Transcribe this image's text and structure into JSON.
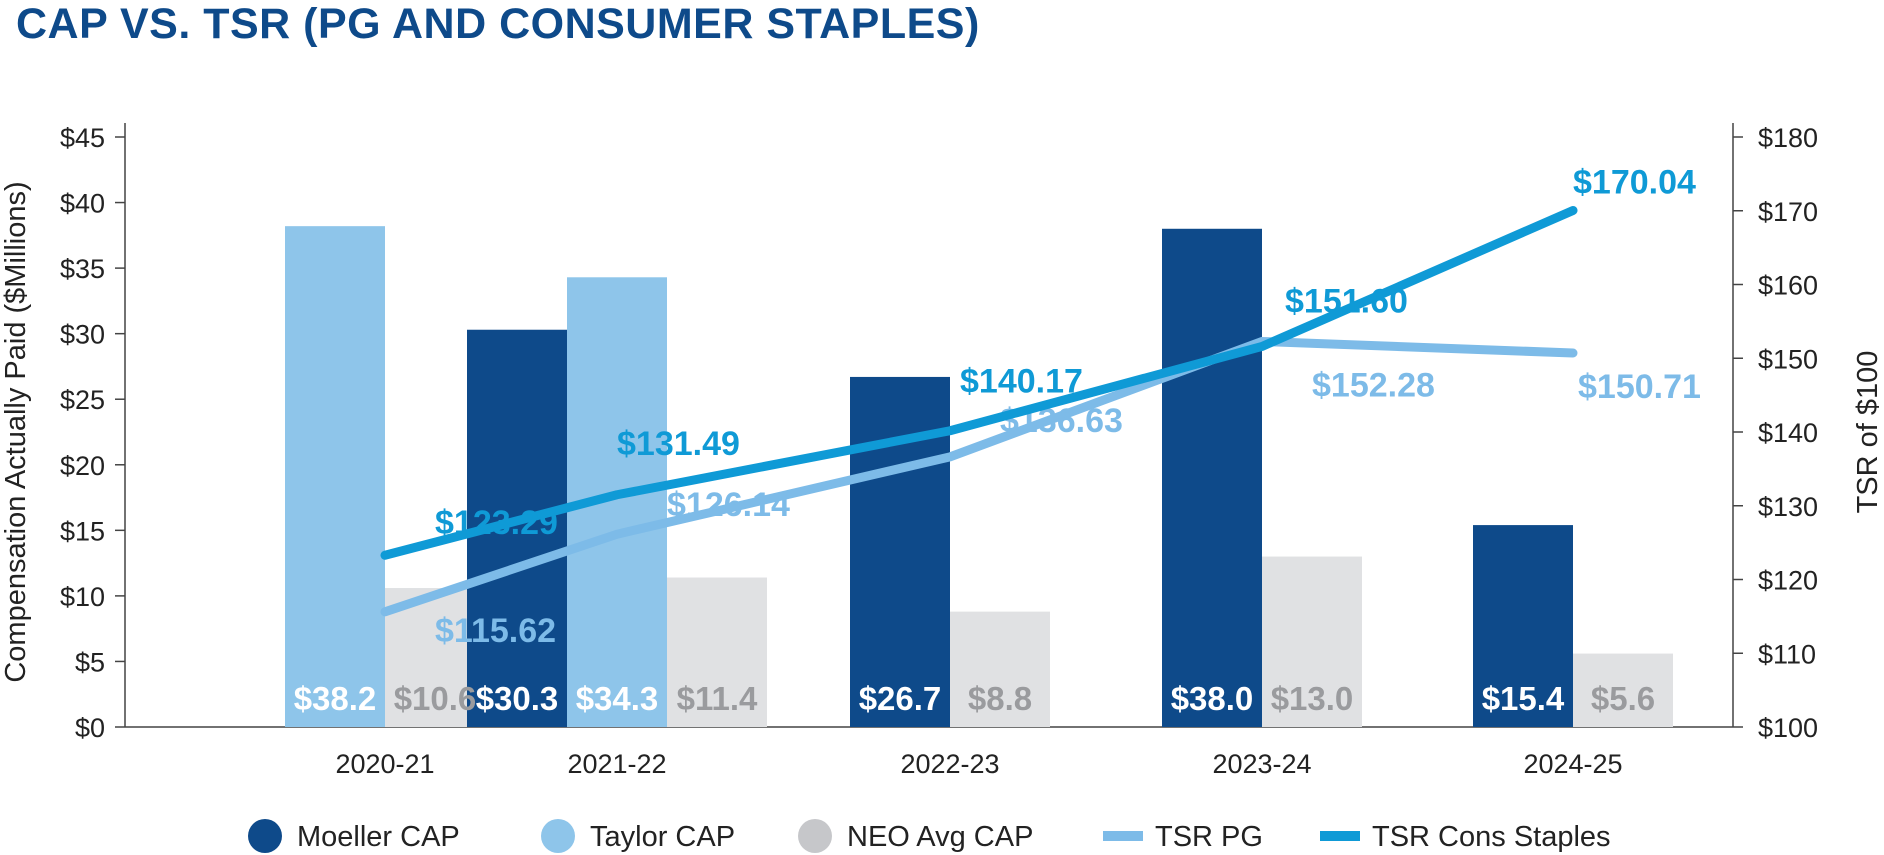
{
  "chart_data": {
    "type": "bar",
    "title": "CAP VS. TSR (PG AND CONSUMER STAPLES)",
    "categories": [
      "2020-21",
      "2021-22",
      "2022-23",
      "2023-24",
      "2024-25"
    ],
    "ylabel": "Compensation Actually Paid ($Millions)",
    "y2label": "TSR of $100",
    "ylim": [
      0,
      45
    ],
    "y2lim": [
      100,
      180
    ],
    "yticks": [
      "$0",
      "$5",
      "$10",
      "$15",
      "$20",
      "$25",
      "$30",
      "$35",
      "$40",
      "$45"
    ],
    "y2ticks": [
      "$100",
      "$110",
      "$120",
      "$130",
      "$140",
      "$150",
      "$160",
      "$170",
      "$180"
    ],
    "series": [
      {
        "name": "Moeller CAP",
        "kind": "bar",
        "color": "#0e4a8a",
        "values": [
          null,
          30.3,
          26.7,
          38.0,
          15.4
        ],
        "labels": [
          null,
          "$30.3",
          "$26.7",
          "$38.0",
          "$15.4"
        ],
        "label_color": "#ffffff"
      },
      {
        "name": "Taylor CAP",
        "kind": "bar",
        "color": "#8ec5ea",
        "values": [
          38.2,
          34.3,
          null,
          null,
          null
        ],
        "labels": [
          "$38.2",
          "$34.3",
          null,
          null,
          null
        ],
        "label_color": "#ffffff"
      },
      {
        "name": "NEO Avg CAP",
        "kind": "bar",
        "color": "#e0e1e3",
        "values": [
          10.6,
          11.4,
          8.8,
          13.0,
          5.6
        ],
        "labels": [
          "$10.6",
          "$11.4",
          "$8.8",
          "$13.0",
          "$5.6"
        ],
        "label_color": "#9a9b9e"
      },
      {
        "name": "TSR PG",
        "kind": "line",
        "axis": "right",
        "color": "#7dbbe8",
        "values": [
          115.62,
          126.14,
          136.63,
          152.28,
          150.71
        ],
        "labels": [
          "$115.62",
          "$126.14",
          "$136.63",
          "$152.28",
          "$150.71"
        ]
      },
      {
        "name": "TSR Cons Staples",
        "kind": "line",
        "axis": "right",
        "color": "#0f9ad6",
        "values": [
          123.29,
          131.49,
          140.17,
          151.6,
          170.04
        ],
        "labels": [
          "$123.29",
          "$131.49",
          "$140.17",
          "$151.60",
          "$170.04"
        ]
      }
    ],
    "legend": [
      {
        "name": "Moeller CAP",
        "marker": "circle",
        "color": "#0e4a8a"
      },
      {
        "name": "Taylor CAP",
        "marker": "circle",
        "color": "#8ec5ea"
      },
      {
        "name": "NEO Avg CAP",
        "marker": "circle",
        "color": "#c6c7ca"
      },
      {
        "name": "TSR PG",
        "marker": "line",
        "color": "#7dbbe8"
      },
      {
        "name": "TSR Cons Staples",
        "marker": "line",
        "color": "#0f9ad6"
      }
    ],
    "legend_position": "bottom",
    "grid": false
  }
}
